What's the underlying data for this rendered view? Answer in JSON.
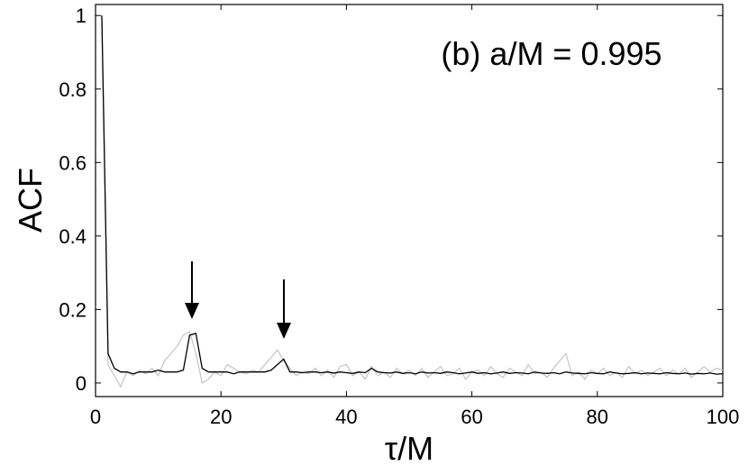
{
  "chart_data": {
    "type": "line",
    "annotation": "(b) a/M = 0.995",
    "xlabel": "τ/M",
    "ylabel": "ACF",
    "x": [
      1,
      2,
      3,
      4,
      5,
      6,
      7,
      8,
      9,
      10,
      11,
      12,
      13,
      14,
      15,
      16,
      17,
      18,
      19,
      20,
      21,
      22,
      23,
      24,
      25,
      26,
      27,
      28,
      29,
      30,
      31,
      32,
      33,
      34,
      35,
      36,
      37,
      38,
      39,
      40,
      41,
      42,
      43,
      44,
      45,
      46,
      47,
      48,
      49,
      50,
      51,
      52,
      53,
      54,
      55,
      56,
      57,
      58,
      59,
      60,
      61,
      62,
      63,
      64,
      65,
      66,
      67,
      68,
      69,
      70,
      71,
      72,
      73,
      74,
      75,
      76,
      77,
      78,
      79,
      80,
      81,
      82,
      83,
      84,
      85,
      86,
      87,
      88,
      89,
      90,
      91,
      92,
      93,
      94,
      95,
      96,
      97,
      98,
      99,
      100
    ],
    "series": [
      {
        "color": "#c8c8c8",
        "values": [
          1.0,
          0.05,
          0.02,
          -0.01,
          0.03,
          0.02,
          0.035,
          0.025,
          0.04,
          0.02,
          0.06,
          0.08,
          0.1,
          0.13,
          0.14,
          0.08,
          0.0,
          0.01,
          0.03,
          0.02,
          0.05,
          0.04,
          0.03,
          0.025,
          0.035,
          0.03,
          0.05,
          0.07,
          0.09,
          0.06,
          0.04,
          0.02,
          0.03,
          0.025,
          0.04,
          0.02,
          0.035,
          0.015,
          0.045,
          0.05,
          0.02,
          0.03,
          0.01,
          0.045,
          0.02,
          0.03,
          0.015,
          0.04,
          0.025,
          0.035,
          0.02,
          0.04,
          0.015,
          0.03,
          0.045,
          0.02,
          0.025,
          0.04,
          0.01,
          0.03,
          0.035,
          0.02,
          0.045,
          0.025,
          0.015,
          0.04,
          0.03,
          0.02,
          0.05,
          0.025,
          0.03,
          0.015,
          0.04,
          0.06,
          0.08,
          0.02,
          0.03,
          0.01,
          0.035,
          0.025,
          0.04,
          0.02,
          0.03,
          0.015,
          0.045,
          0.025,
          0.035,
          0.02,
          0.03,
          0.04,
          0.02,
          0.035,
          0.025,
          0.04,
          0.015,
          0.03,
          0.045,
          0.03,
          0.04,
          0.035
        ]
      },
      {
        "color": "#000000",
        "values": [
          1.0,
          0.08,
          0.04,
          0.03,
          0.03,
          0.025,
          0.03,
          0.03,
          0.03,
          0.035,
          0.03,
          0.03,
          0.03,
          0.035,
          0.13,
          0.135,
          0.04,
          0.03,
          0.03,
          0.03,
          0.03,
          0.025,
          0.03,
          0.03,
          0.03,
          0.03,
          0.03,
          0.035,
          0.05,
          0.065,
          0.03,
          0.03,
          0.028,
          0.03,
          0.03,
          0.028,
          0.03,
          0.027,
          0.03,
          0.028,
          0.026,
          0.03,
          0.028,
          0.04,
          0.03,
          0.028,
          0.027,
          0.03,
          0.026,
          0.028,
          0.025,
          0.03,
          0.027,
          0.028,
          0.026,
          0.03,
          0.028,
          0.025,
          0.027,
          0.03,
          0.026,
          0.028,
          0.025,
          0.027,
          0.03,
          0.026,
          0.028,
          0.027,
          0.025,
          0.03,
          0.027,
          0.026,
          0.028,
          0.025,
          0.03,
          0.027,
          0.026,
          0.025,
          0.028,
          0.026,
          0.025,
          0.03,
          0.027,
          0.025,
          0.026,
          0.028,
          0.025,
          0.027,
          0.026,
          0.025,
          0.028,
          0.026,
          0.025,
          0.027,
          0.024,
          0.026,
          0.025,
          0.027,
          0.024,
          0.025
        ]
      }
    ],
    "xlim": [
      0,
      100
    ],
    "xticks": [
      0,
      20,
      40,
      60,
      80,
      100
    ],
    "ylim": [
      -0.037,
      1.03
    ],
    "yticks": [
      0,
      0.2,
      0.4,
      0.6,
      0.8,
      1
    ]
  }
}
